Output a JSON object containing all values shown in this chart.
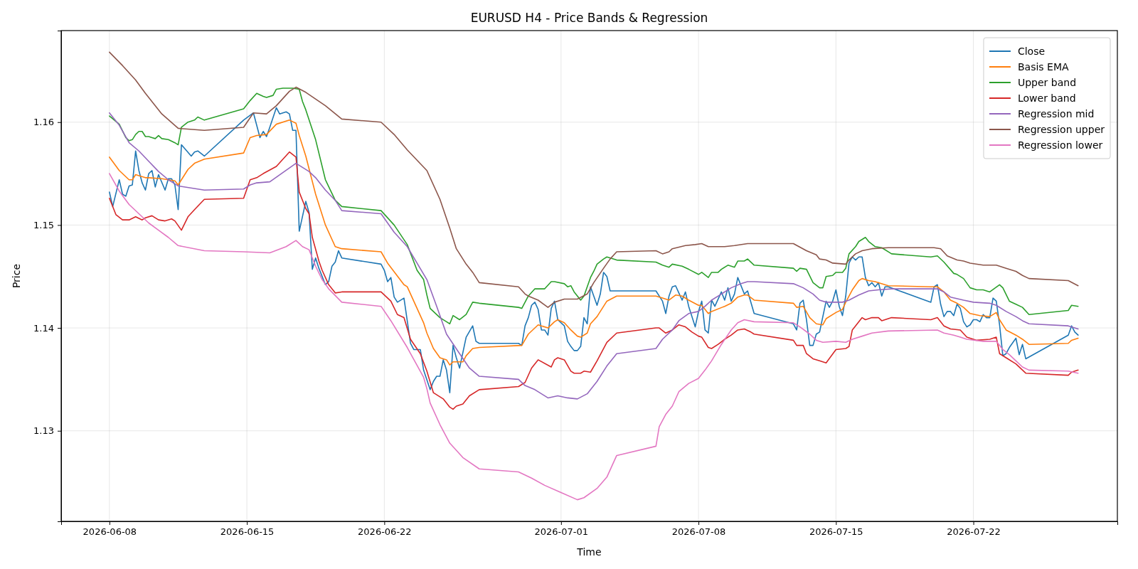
{
  "chart_data": {
    "type": "line",
    "title": "EURUSD H4 - Price Bands & Regression",
    "xlabel": "Time",
    "ylabel": "Price",
    "xlim": [
      "2026-06-05T13:00",
      "2026-07-29T08:00"
    ],
    "ylim": [
      1.1212,
      1.1689
    ],
    "xticks": [
      "2026-06-08",
      "2026-06-15",
      "2026-06-22",
      "2026-07-01",
      "2026-07-08",
      "2026-07-15",
      "2026-07-22"
    ],
    "yticks": [
      1.13,
      1.14,
      1.15,
      1.16
    ],
    "grid": true,
    "legend": "top right",
    "line_style": "solid",
    "marker": "none",
    "series": [
      {
        "name": "Close",
        "color": "#1f77b4",
        "x": [
          "2026-06-08T00:00",
          "2026-06-08T04:00",
          "2026-06-08T12:00",
          "2026-06-08T16:00",
          "2026-06-08T20:00",
          "2026-06-09T00:00",
          "2026-06-09T04:00",
          "2026-06-09T08:00",
          "2026-06-09T12:00",
          "2026-06-09T16:00",
          "2026-06-09T20:00",
          "2026-06-10T00:00",
          "2026-06-10T04:00",
          "2026-06-10T08:00",
          "2026-06-10T12:00",
          "2026-06-10T20:00",
          "2026-06-11T00:00",
          "2026-06-11T04:00",
          "2026-06-11T08:00",
          "2026-06-11T12:00",
          "2026-06-11T16:00",
          "2026-06-12T04:00",
          "2026-06-12T08:00",
          "2026-06-12T12:00",
          "2026-06-12T20:00",
          "2026-06-14T20:00",
          "2026-06-15T08:00",
          "2026-06-15T16:00",
          "2026-06-15T20:00",
          "2026-06-16T00:00",
          "2026-06-16T04:00",
          "2026-06-16T12:00",
          "2026-06-16T16:00",
          "2026-06-17T00:00",
          "2026-06-17T04:00",
          "2026-06-17T08:00",
          "2026-06-17T12:00",
          "2026-06-17T16:00",
          "2026-06-18T00:00",
          "2026-06-18T04:00",
          "2026-06-18T08:00",
          "2026-06-18T12:00",
          "2026-06-18T16:00",
          "2026-06-19T00:00",
          "2026-06-19T04:00",
          "2026-06-19T08:00",
          "2026-06-19T12:00",
          "2026-06-19T16:00",
          "2026-06-19T20:00",
          "2026-06-21T20:00",
          "2026-06-22T00:00",
          "2026-06-22T04:00",
          "2026-06-22T08:00",
          "2026-06-22T12:00",
          "2026-06-22T16:00",
          "2026-06-23T00:00",
          "2026-06-23T08:00",
          "2026-06-23T12:00",
          "2026-06-23T20:00",
          "2026-06-24T00:00",
          "2026-06-24T08:00",
          "2026-06-24T12:00",
          "2026-06-24T16:00",
          "2026-06-24T20:00",
          "2026-06-25T00:00",
          "2026-06-25T04:00",
          "2026-06-25T08:00",
          "2026-06-25T12:00",
          "2026-06-25T16:00",
          "2026-06-25T20:00",
          "2026-06-26T04:00",
          "2026-06-26T12:00",
          "2026-06-26T16:00",
          "2026-06-26T20:00",
          "2026-06-28T20:00",
          "2026-06-29T00:00",
          "2026-06-29T04:00",
          "2026-06-29T08:00",
          "2026-06-29T12:00",
          "2026-06-29T16:00",
          "2026-06-29T20:00",
          "2026-06-30T00:00",
          "2026-06-30T04:00",
          "2026-06-30T08:00",
          "2026-06-30T12:00",
          "2026-06-30T16:00",
          "2026-06-30T20:00",
          "2026-07-01T04:00",
          "2026-07-01T08:00",
          "2026-07-01T12:00",
          "2026-07-01T16:00",
          "2026-07-01T20:00",
          "2026-07-02T00:00",
          "2026-07-02T04:00",
          "2026-07-02T08:00",
          "2026-07-02T12:00",
          "2026-07-02T20:00",
          "2026-07-03T00:00",
          "2026-07-03T04:00",
          "2026-07-03T08:00",
          "2026-07-03T12:00",
          "2026-07-03T16:00",
          "2026-07-05T20:00",
          "2026-07-06T04:00",
          "2026-07-06T08:00",
          "2026-07-06T12:00",
          "2026-07-06T16:00",
          "2026-07-06T20:00",
          "2026-07-07T00:00",
          "2026-07-07T04:00",
          "2026-07-07T08:00",
          "2026-07-07T12:00",
          "2026-07-07T20:00",
          "2026-07-08T00:00",
          "2026-07-08T04:00",
          "2026-07-08T08:00",
          "2026-07-08T12:00",
          "2026-07-08T16:00",
          "2026-07-08T20:00",
          "2026-07-09T04:00",
          "2026-07-09T08:00",
          "2026-07-09T12:00",
          "2026-07-09T16:00",
          "2026-07-09T20:00",
          "2026-07-10T00:00",
          "2026-07-10T08:00",
          "2026-07-10T12:00",
          "2026-07-10T20:00",
          "2026-07-12T20:00",
          "2026-07-13T00:00",
          "2026-07-13T04:00",
          "2026-07-13T08:00",
          "2026-07-13T12:00",
          "2026-07-13T16:00",
          "2026-07-13T20:00",
          "2026-07-14T00:00",
          "2026-07-14T04:00",
          "2026-07-14T12:00",
          "2026-07-14T16:00",
          "2026-07-14T20:00",
          "2026-07-15T00:00",
          "2026-07-15T04:00",
          "2026-07-15T08:00",
          "2026-07-15T12:00",
          "2026-07-15T16:00",
          "2026-07-15T20:00",
          "2026-07-16T00:00",
          "2026-07-16T04:00",
          "2026-07-16T08:00",
          "2026-07-16T12:00",
          "2026-07-16T16:00",
          "2026-07-16T20:00",
          "2026-07-17T00:00",
          "2026-07-17T04:00",
          "2026-07-17T08:00",
          "2026-07-17T12:00",
          "2026-07-17T16:00",
          "2026-07-19T20:00",
          "2026-07-20T00:00",
          "2026-07-20T04:00",
          "2026-07-20T08:00",
          "2026-07-20T12:00",
          "2026-07-20T16:00",
          "2026-07-20T20:00",
          "2026-07-21T00:00",
          "2026-07-21T04:00",
          "2026-07-21T08:00",
          "2026-07-21T12:00",
          "2026-07-21T16:00",
          "2026-07-21T20:00",
          "2026-07-22T00:00",
          "2026-07-22T04:00",
          "2026-07-22T08:00",
          "2026-07-22T12:00",
          "2026-07-22T16:00",
          "2026-07-22T20:00",
          "2026-07-23T00:00",
          "2026-07-23T04:00",
          "2026-07-23T08:00",
          "2026-07-23T12:00",
          "2026-07-23T16:00",
          "2026-07-23T20:00",
          "2026-07-24T04:00",
          "2026-07-24T08:00",
          "2026-07-24T12:00",
          "2026-07-24T16:00",
          "2026-07-26T20:00",
          "2026-07-27T00:00",
          "2026-07-27T04:00",
          "2026-07-27T08:00"
        ],
        "values": [
          1.1532,
          1.1518,
          1.1544,
          1.153,
          1.1528,
          1.1538,
          1.1539,
          1.1572,
          1.1553,
          1.1541,
          1.1534,
          1.155,
          1.1553,
          1.1537,
          1.1549,
          1.1534,
          1.1545,
          1.1545,
          1.1539,
          1.1515,
          1.1578,
          1.1567,
          1.1571,
          1.1572,
          1.1567,
          1.1602,
          1.1609,
          1.1585,
          1.1591,
          1.1586,
          1.1595,
          1.1614,
          1.1608,
          1.161,
          1.1608,
          1.1592,
          1.1592,
          1.1494,
          1.1523,
          1.1512,
          1.1457,
          1.1468,
          1.1458,
          1.1442,
          1.1445,
          1.146,
          1.1464,
          1.1475,
          1.1468,
          1.1462,
          1.1456,
          1.1445,
          1.1449,
          1.143,
          1.1425,
          1.1429,
          1.1385,
          1.1379,
          1.1379,
          1.1359,
          1.134,
          1.1348,
          1.1353,
          1.1353,
          1.1369,
          1.1359,
          1.1337,
          1.1383,
          1.1371,
          1.1361,
          1.1391,
          1.1402,
          1.1387,
          1.1385,
          1.1385,
          1.1383,
          1.1402,
          1.141,
          1.1422,
          1.1425,
          1.1418,
          1.1398,
          1.1398,
          1.1393,
          1.1419,
          1.1426,
          1.1408,
          1.1402,
          1.1387,
          1.1382,
          1.1378,
          1.1378,
          1.1382,
          1.141,
          1.1404,
          1.144,
          1.1422,
          1.1433,
          1.1454,
          1.145,
          1.1436,
          1.1436,
          1.1436,
          1.1426,
          1.1414,
          1.1431,
          1.144,
          1.1441,
          1.1434,
          1.1427,
          1.1435,
          1.1421,
          1.1401,
          1.1416,
          1.1426,
          1.1398,
          1.1395,
          1.1427,
          1.1421,
          1.1435,
          1.1427,
          1.1439,
          1.1426,
          1.1433,
          1.1449,
          1.1433,
          1.1436,
          1.1414,
          1.1404,
          1.1398,
          1.1424,
          1.1427,
          1.1408,
          1.1383,
          1.1383,
          1.1394,
          1.1396,
          1.1426,
          1.142,
          1.1426,
          1.1437,
          1.1421,
          1.1412,
          1.1431,
          1.1463,
          1.1469,
          1.1466,
          1.1469,
          1.1469,
          1.1449,
          1.1441,
          1.1444,
          1.144,
          1.1444,
          1.1431,
          1.144,
          1.144,
          1.1425,
          1.144,
          1.1442,
          1.1423,
          1.1411,
          1.1416,
          1.1416,
          1.1412,
          1.1423,
          1.1419,
          1.1406,
          1.1401,
          1.1403,
          1.1408,
          1.1408,
          1.1406,
          1.1413,
          1.141,
          1.141,
          1.1429,
          1.1426,
          1.1403,
          1.1373,
          1.1375,
          1.1381,
          1.139,
          1.1374,
          1.1384,
          1.137,
          1.1393,
          1.1402,
          1.1396,
          1.1393
        ]
      },
      {
        "name": "Basis EMA",
        "color": "#ff7f0e",
        "x": [
          "2026-06-08T00:00",
          "2026-06-08T12:00",
          "2026-06-09T00:00",
          "2026-06-09T04:00",
          "2026-06-09T08:00",
          "2026-06-09T12:00",
          "2026-06-09T20:00",
          "2026-06-10T00:00",
          "2026-06-10T16:00",
          "2026-06-11T00:00",
          "2026-06-11T08:00",
          "2026-06-11T12:00",
          "2026-06-11T16:00",
          "2026-06-12T00:00",
          "2026-06-12T08:00",
          "2026-06-12T20:00",
          "2026-06-14T20:00",
          "2026-06-15T04:00",
          "2026-06-15T12:00",
          "2026-06-16T00:00",
          "2026-06-16T12:00",
          "2026-06-17T04:00",
          "2026-06-17T12:00",
          "2026-06-17T16:00",
          "2026-06-18T00:00",
          "2026-06-18T12:00",
          "2026-06-19T00:00",
          "2026-06-19T12:00",
          "2026-06-19T20:00",
          "2026-06-21T20:00",
          "2026-06-22T04:00",
          "2026-06-23T00:00",
          "2026-06-23T04:00",
          "2026-06-24T00:00",
          "2026-06-24T04:00",
          "2026-06-24T12:00",
          "2026-06-24T20:00",
          "2026-06-25T04:00",
          "2026-06-25T08:00",
          "2026-06-25T12:00",
          "2026-06-25T20:00",
          "2026-06-26T00:00",
          "2026-06-26T04:00",
          "2026-06-26T12:00",
          "2026-06-26T20:00",
          "2026-06-29T00:00",
          "2026-06-29T08:00",
          "2026-06-29T20:00",
          "2026-06-30T00:00",
          "2026-06-30T08:00",
          "2026-06-30T16:00",
          "2026-06-30T20:00",
          "2026-07-01T04:00",
          "2026-07-01T12:00",
          "2026-07-01T20:00",
          "2026-07-02T00:00",
          "2026-07-02T08:00",
          "2026-07-02T12:00",
          "2026-07-02T20:00",
          "2026-07-03T08:00",
          "2026-07-03T20:00",
          "2026-07-05T20:00",
          "2026-07-06T04:00",
          "2026-07-06T12:00",
          "2026-07-06T20:00",
          "2026-07-07T04:00",
          "2026-07-07T12:00",
          "2026-07-08T00:00",
          "2026-07-08T04:00",
          "2026-07-08T12:00",
          "2026-07-08T16:00",
          "2026-07-09T08:00",
          "2026-07-09T16:00",
          "2026-07-10T00:00",
          "2026-07-10T08:00",
          "2026-07-10T12:00",
          "2026-07-10T20:00",
          "2026-07-12T20:00",
          "2026-07-13T00:00",
          "2026-07-13T08:00",
          "2026-07-13T16:00",
          "2026-07-14T00:00",
          "2026-07-14T08:00",
          "2026-07-14T12:00",
          "2026-07-15T00:00",
          "2026-07-15T08:00",
          "2026-07-15T12:00",
          "2026-07-15T20:00",
          "2026-07-16T04:00",
          "2026-07-16T08:00",
          "2026-07-16T16:00",
          "2026-07-17T00:00",
          "2026-07-17T04:00",
          "2026-07-17T16:00",
          "2026-07-19T20:00",
          "2026-07-20T04:00",
          "2026-07-20T12:00",
          "2026-07-20T20:00",
          "2026-07-21T04:00",
          "2026-07-21T12:00",
          "2026-07-21T20:00",
          "2026-07-22T08:00",
          "2026-07-22T20:00",
          "2026-07-23T04:00",
          "2026-07-23T08:00",
          "2026-07-23T16:00",
          "2026-07-24T04:00",
          "2026-07-24T12:00",
          "2026-07-24T20:00",
          "2026-07-26T20:00",
          "2026-07-27T00:00",
          "2026-07-27T08:00"
        ],
        "values": [
          1.1566,
          1.1553,
          1.1544,
          1.1544,
          1.1549,
          1.1548,
          1.1546,
          1.1546,
          1.1545,
          1.1544,
          1.1543,
          1.1539,
          1.1544,
          1.1554,
          1.156,
          1.1564,
          1.157,
          1.1585,
          1.1587,
          1.1588,
          1.1598,
          1.1602,
          1.1599,
          1.1587,
          1.1567,
          1.153,
          1.15,
          1.1479,
          1.1477,
          1.1474,
          1.1463,
          1.1442,
          1.144,
          1.1405,
          1.1395,
          1.138,
          1.1371,
          1.1369,
          1.1364,
          1.1367,
          1.1367,
          1.1367,
          1.1373,
          1.138,
          1.1381,
          1.1383,
          1.1394,
          1.1403,
          1.1402,
          1.14,
          1.1406,
          1.1408,
          1.1405,
          1.1398,
          1.1392,
          1.1391,
          1.1395,
          1.1404,
          1.1411,
          1.1426,
          1.1431,
          1.1431,
          1.1429,
          1.1427,
          1.1432,
          1.1431,
          1.1427,
          1.1422,
          1.1422,
          1.1414,
          1.1416,
          1.1421,
          1.1424,
          1.143,
          1.1432,
          1.1432,
          1.1427,
          1.1424,
          1.142,
          1.1421,
          1.141,
          1.1404,
          1.1403,
          1.1409,
          1.1415,
          1.1418,
          1.1425,
          1.1437,
          1.1446,
          1.1448,
          1.1446,
          1.1445,
          1.1444,
          1.1441,
          1.144,
          1.144,
          1.1435,
          1.1427,
          1.1424,
          1.142,
          1.1414,
          1.1412,
          1.1411,
          1.1415,
          1.1408,
          1.1398,
          1.1393,
          1.1389,
          1.1384,
          1.1385,
          1.1388,
          1.139
        ]
      },
      {
        "name": "Upper band",
        "color": "#2ca02c",
        "x": [
          "2026-06-08T00:00",
          "2026-06-08T12:00",
          "2026-06-08T20:00",
          "2026-06-09T00:00",
          "2026-06-09T04:00",
          "2026-06-09T08:00",
          "2026-06-09T12:00",
          "2026-06-09T16:00",
          "2026-06-09T20:00",
          "2026-06-10T00:00",
          "2026-06-10T04:00",
          "2026-06-10T08:00",
          "2026-06-10T12:00",
          "2026-06-10T16:00",
          "2026-06-11T00:00",
          "2026-06-11T08:00",
          "2026-06-11T12:00",
          "2026-06-11T16:00",
          "2026-06-12T00:00",
          "2026-06-12T08:00",
          "2026-06-12T12:00",
          "2026-06-12T20:00",
          "2026-06-14T20:00",
          "2026-06-15T04:00",
          "2026-06-15T12:00",
          "2026-06-15T20:00",
          "2026-06-16T00:00",
          "2026-06-16T08:00",
          "2026-06-16T12:00",
          "2026-06-16T20:00",
          "2026-06-17T08:00",
          "2026-06-17T16:00",
          "2026-06-17T20:00",
          "2026-06-18T00:00",
          "2026-06-18T12:00",
          "2026-06-19T00:00",
          "2026-06-19T12:00",
          "2026-06-19T20:00",
          "2026-06-21T20:00",
          "2026-06-22T12:00",
          "2026-06-23T04:00",
          "2026-06-23T16:00",
          "2026-06-24T00:00",
          "2026-06-24T04:00",
          "2026-06-24T08:00",
          "2026-06-24T20:00",
          "2026-06-25T04:00",
          "2026-06-25T08:00",
          "2026-06-25T12:00",
          "2026-06-25T20:00",
          "2026-06-26T04:00",
          "2026-06-26T12:00",
          "2026-06-26T20:00",
          "2026-06-28T20:00",
          "2026-06-29T00:00",
          "2026-06-29T08:00",
          "2026-06-29T16:00",
          "2026-06-30T04:00",
          "2026-06-30T12:00",
          "2026-06-30T16:00",
          "2026-07-01T04:00",
          "2026-07-01T08:00",
          "2026-07-01T12:00",
          "2026-07-01T16:00",
          "2026-07-02T00:00",
          "2026-07-02T04:00",
          "2026-07-02T12:00",
          "2026-07-02T16:00",
          "2026-07-02T20:00",
          "2026-07-03T04:00",
          "2026-07-03T08:00",
          "2026-07-03T20:00",
          "2026-07-05T20:00",
          "2026-07-06T04:00",
          "2026-07-06T12:00",
          "2026-07-06T16:00",
          "2026-07-07T04:00",
          "2026-07-07T12:00",
          "2026-07-08T00:00",
          "2026-07-08T04:00",
          "2026-07-08T12:00",
          "2026-07-08T16:00",
          "2026-07-09T00:00",
          "2026-07-09T04:00",
          "2026-07-09T12:00",
          "2026-07-09T20:00",
          "2026-07-10T00:00",
          "2026-07-10T08:00",
          "2026-07-10T12:00",
          "2026-07-10T20:00",
          "2026-07-12T20:00",
          "2026-07-13T00:00",
          "2026-07-13T04:00",
          "2026-07-13T12:00",
          "2026-07-13T20:00",
          "2026-07-14T04:00",
          "2026-07-14T08:00",
          "2026-07-14T12:00",
          "2026-07-14T20:00",
          "2026-07-15T00:00",
          "2026-07-15T08:00",
          "2026-07-15T12:00",
          "2026-07-15T16:00",
          "2026-07-16T00:00",
          "2026-07-16T04:00",
          "2026-07-16T12:00",
          "2026-07-16T16:00",
          "2026-07-17T00:00",
          "2026-07-17T08:00",
          "2026-07-17T20:00",
          "2026-07-19T20:00",
          "2026-07-20T04:00",
          "2026-07-20T12:00",
          "2026-07-21T00:00",
          "2026-07-21T04:00",
          "2026-07-21T12:00",
          "2026-07-21T20:00",
          "2026-07-22T04:00",
          "2026-07-22T12:00",
          "2026-07-22T20:00",
          "2026-07-23T08:00",
          "2026-07-23T12:00",
          "2026-07-23T20:00",
          "2026-07-24T04:00",
          "2026-07-24T12:00",
          "2026-07-24T20:00",
          "2026-07-26T20:00",
          "2026-07-27T00:00",
          "2026-07-27T08:00"
        ],
        "values": [
          1.1606,
          1.1598,
          1.1585,
          1.1582,
          1.1583,
          1.1588,
          1.1591,
          1.1591,
          1.1586,
          1.1586,
          1.1585,
          1.1584,
          1.1587,
          1.1584,
          1.1583,
          1.158,
          1.1578,
          1.1595,
          1.16,
          1.1602,
          1.1605,
          1.1602,
          1.1613,
          1.1621,
          1.1628,
          1.1625,
          1.1624,
          1.1626,
          1.1632,
          1.1633,
          1.1633,
          1.1632,
          1.162,
          1.1612,
          1.1583,
          1.1544,
          1.1524,
          1.1518,
          1.1514,
          1.15,
          1.1481,
          1.1456,
          1.1447,
          1.1432,
          1.1419,
          1.141,
          1.1406,
          1.1404,
          1.1412,
          1.1408,
          1.1413,
          1.1425,
          1.1424,
          1.142,
          1.1419,
          1.1431,
          1.1438,
          1.1438,
          1.1445,
          1.1445,
          1.1443,
          1.144,
          1.1441,
          1.1435,
          1.1427,
          1.1431,
          1.1449,
          1.1455,
          1.1462,
          1.1467,
          1.1469,
          1.1466,
          1.1464,
          1.1461,
          1.1459,
          1.1462,
          1.146,
          1.1457,
          1.1452,
          1.1454,
          1.1449,
          1.1454,
          1.1454,
          1.1457,
          1.1461,
          1.1459,
          1.1465,
          1.1465,
          1.1467,
          1.1461,
          1.1458,
          1.1455,
          1.1458,
          1.1457,
          1.1444,
          1.1439,
          1.1439,
          1.145,
          1.1451,
          1.1454,
          1.1454,
          1.1458,
          1.1472,
          1.1479,
          1.1484,
          1.1488,
          1.1484,
          1.1479,
          1.1478,
          1.1472,
          1.1469,
          1.147,
          1.1464,
          1.1453,
          1.1452,
          1.1448,
          1.1439,
          1.1437,
          1.1437,
          1.1435,
          1.1442,
          1.1439,
          1.1426,
          1.1423,
          1.142,
          1.1413,
          1.1417,
          1.1422,
          1.1421
        ]
      },
      {
        "name": "Lower band",
        "color": "#d62728",
        "x": [
          "2026-06-08T00:00",
          "2026-06-08T08:00",
          "2026-06-08T16:00",
          "2026-06-09T00:00",
          "2026-06-09T08:00",
          "2026-06-09T16:00",
          "2026-06-09T20:00",
          "2026-06-10T04:00",
          "2026-06-10T12:00",
          "2026-06-10T20:00",
          "2026-06-11T04:00",
          "2026-06-11T08:00",
          "2026-06-11T16:00",
          "2026-06-12T00:00",
          "2026-06-12T08:00",
          "2026-06-12T20:00",
          "2026-06-14T20:00",
          "2026-06-15T04:00",
          "2026-06-15T12:00",
          "2026-06-15T20:00",
          "2026-06-16T12:00",
          "2026-06-17T04:00",
          "2026-06-17T12:00",
          "2026-06-17T16:00",
          "2026-06-18T00:00",
          "2026-06-18T04:00",
          "2026-06-18T08:00",
          "2026-06-18T16:00",
          "2026-06-18T20:00",
          "2026-06-19T04:00",
          "2026-06-19T12:00",
          "2026-06-19T20:00",
          "2026-06-21T20:00",
          "2026-06-22T08:00",
          "2026-06-22T16:00",
          "2026-06-23T00:00",
          "2026-06-23T08:00",
          "2026-06-23T20:00",
          "2026-06-24T04:00",
          "2026-06-24T12:00",
          "2026-06-25T00:00",
          "2026-06-25T08:00",
          "2026-06-25T12:00",
          "2026-06-25T16:00",
          "2026-06-26T00:00",
          "2026-06-26T08:00",
          "2026-06-26T20:00",
          "2026-06-28T20:00",
          "2026-06-29T04:00",
          "2026-06-29T12:00",
          "2026-06-29T20:00",
          "2026-06-30T12:00",
          "2026-06-30T16:00",
          "2026-06-30T20:00",
          "2026-07-01T04:00",
          "2026-07-01T12:00",
          "2026-07-01T16:00",
          "2026-07-02T00:00",
          "2026-07-02T04:00",
          "2026-07-02T12:00",
          "2026-07-02T20:00",
          "2026-07-03T08:00",
          "2026-07-03T20:00",
          "2026-07-05T20:00",
          "2026-07-06T00:00",
          "2026-07-06T08:00",
          "2026-07-06T16:00",
          "2026-07-07T00:00",
          "2026-07-07T08:00",
          "2026-07-07T16:00",
          "2026-07-08T00:00",
          "2026-07-08T04:00",
          "2026-07-08T12:00",
          "2026-07-08T16:00",
          "2026-07-09T00:00",
          "2026-07-09T08:00",
          "2026-07-09T16:00",
          "2026-07-10T00:00",
          "2026-07-10T08:00",
          "2026-07-10T16:00",
          "2026-07-10T20:00",
          "2026-07-12T20:00",
          "2026-07-13T00:00",
          "2026-07-13T08:00",
          "2026-07-13T12:00",
          "2026-07-13T20:00",
          "2026-07-14T04:00",
          "2026-07-14T12:00",
          "2026-07-15T00:00",
          "2026-07-15T12:00",
          "2026-07-15T16:00",
          "2026-07-15T20:00",
          "2026-07-16T08:00",
          "2026-07-16T12:00",
          "2026-07-16T20:00",
          "2026-07-17T04:00",
          "2026-07-17T08:00",
          "2026-07-17T20:00",
          "2026-07-19T20:00",
          "2026-07-20T04:00",
          "2026-07-20T12:00",
          "2026-07-20T20:00",
          "2026-07-21T08:00",
          "2026-07-21T16:00",
          "2026-07-22T04:00",
          "2026-07-22T20:00",
          "2026-07-23T04:00",
          "2026-07-23T08:00",
          "2026-07-23T16:00",
          "2026-07-24T04:00",
          "2026-07-24T16:00",
          "2026-07-26T20:00",
          "2026-07-27T00:00",
          "2026-07-27T08:00"
        ],
        "values": [
          1.1526,
          1.151,
          1.1505,
          1.1505,
          1.1508,
          1.1505,
          1.1507,
          1.1509,
          1.1505,
          1.1504,
          1.1506,
          1.1504,
          1.1495,
          1.1508,
          1.1515,
          1.1525,
          1.1526,
          1.1544,
          1.1546,
          1.155,
          1.1557,
          1.1571,
          1.1566,
          1.1532,
          1.1516,
          1.1511,
          1.1488,
          1.1465,
          1.1456,
          1.1442,
          1.1434,
          1.1435,
          1.1435,
          1.1426,
          1.1413,
          1.141,
          1.1389,
          1.1375,
          1.1358,
          1.1337,
          1.1331,
          1.1323,
          1.1321,
          1.1324,
          1.1326,
          1.1334,
          1.134,
          1.1343,
          1.1347,
          1.1361,
          1.1369,
          1.1362,
          1.1369,
          1.1371,
          1.1369,
          1.1358,
          1.1356,
          1.1356,
          1.1358,
          1.1357,
          1.1368,
          1.1386,
          1.1395,
          1.14,
          1.14,
          1.1395,
          1.1398,
          1.1403,
          1.1401,
          1.1396,
          1.1392,
          1.1391,
          1.1381,
          1.138,
          1.1384,
          1.1389,
          1.1393,
          1.1398,
          1.1399,
          1.1396,
          1.1394,
          1.1388,
          1.1383,
          1.1383,
          1.1375,
          1.137,
          1.1368,
          1.1366,
          1.1379,
          1.138,
          1.1382,
          1.1398,
          1.141,
          1.1408,
          1.141,
          1.141,
          1.1407,
          1.141,
          1.1408,
          1.141,
          1.1402,
          1.1399,
          1.1398,
          1.1391,
          1.1388,
          1.1389,
          1.1391,
          1.1375,
          1.1371,
          1.1365,
          1.1356,
          1.1354,
          1.1357,
          1.1359
        ]
      },
      {
        "name": "Regression mid",
        "color": "#9467bd",
        "x": [
          "2026-06-08T00:00",
          "2026-06-08T12:00",
          "2026-06-09T00:00",
          "2026-06-09T12:00",
          "2026-06-10T00:00",
          "2026-06-10T12:00",
          "2026-06-11T00:00",
          "2026-06-11T12:00",
          "2026-06-12T20:00",
          "2026-06-14T20:00",
          "2026-06-15T04:00",
          "2026-06-15T12:00",
          "2026-06-16T04:00",
          "2026-06-16T20:00",
          "2026-06-17T12:00",
          "2026-06-18T04:00",
          "2026-06-18T12:00",
          "2026-06-19T00:00",
          "2026-06-19T12:00",
          "2026-06-19T20:00",
          "2026-06-21T20:00",
          "2026-06-22T12:00",
          "2026-06-23T04:00",
          "2026-06-24T04:00",
          "2026-06-24T16:00",
          "2026-06-25T04:00",
          "2026-06-25T20:00",
          "2026-06-26T08:00",
          "2026-06-26T20:00",
          "2026-06-28T20:00",
          "2026-06-29T04:00",
          "2026-06-29T16:00",
          "2026-06-30T08:00",
          "2026-06-30T20:00",
          "2026-07-01T08:00",
          "2026-07-01T20:00",
          "2026-07-02T08:00",
          "2026-07-02T20:00",
          "2026-07-03T08:00",
          "2026-07-03T20:00",
          "2026-07-05T20:00",
          "2026-07-06T04:00",
          "2026-07-06T16:00",
          "2026-07-07T00:00",
          "2026-07-07T12:00",
          "2026-07-08T00:00",
          "2026-07-08T08:00",
          "2026-07-08T16:00",
          "2026-07-09T04:00",
          "2026-07-09T16:00",
          "2026-07-10T04:00",
          "2026-07-10T12:00",
          "2026-07-10T20:00",
          "2026-07-12T20:00",
          "2026-07-13T08:00",
          "2026-07-13T20:00",
          "2026-07-14T04:00",
          "2026-07-14T12:00",
          "2026-07-15T08:00",
          "2026-07-15T16:00",
          "2026-07-16T04:00",
          "2026-07-16T16:00",
          "2026-07-17T04:00",
          "2026-07-17T20:00",
          "2026-07-20T04:00",
          "2026-07-20T12:00",
          "2026-07-20T20:00",
          "2026-07-21T12:00",
          "2026-07-22T00:00",
          "2026-07-22T20:00",
          "2026-07-23T04:00",
          "2026-07-23T16:00",
          "2026-07-24T04:00",
          "2026-07-24T12:00",
          "2026-07-24T20:00",
          "2026-07-26T20:00",
          "2026-07-27T08:00"
        ],
        "values": [
          1.1609,
          1.1597,
          1.158,
          1.1572,
          1.1562,
          1.1552,
          1.1544,
          1.1538,
          1.1534,
          1.1535,
          1.1539,
          1.1541,
          1.1542,
          1.1551,
          1.156,
          1.1552,
          1.1546,
          1.1534,
          1.1524,
          1.1514,
          1.1511,
          1.1493,
          1.1479,
          1.1447,
          1.1421,
          1.1394,
          1.1375,
          1.1361,
          1.1353,
          1.135,
          1.1344,
          1.134,
          1.1332,
          1.1334,
          1.1332,
          1.1331,
          1.1336,
          1.1348,
          1.1363,
          1.1375,
          1.138,
          1.1389,
          1.1398,
          1.1407,
          1.1414,
          1.1416,
          1.1421,
          1.1427,
          1.1433,
          1.1439,
          1.1443,
          1.1445,
          1.1445,
          1.1443,
          1.1439,
          1.1433,
          1.1427,
          1.1425,
          1.1425,
          1.1427,
          1.1432,
          1.1436,
          1.1437,
          1.1438,
          1.1438,
          1.1435,
          1.143,
          1.1427,
          1.1425,
          1.1424,
          1.1422,
          1.1416,
          1.1411,
          1.1407,
          1.1404,
          1.1402,
          1.1399
        ]
      },
      {
        "name": "Regression upper",
        "color": "#8c564b",
        "x": [
          "2026-06-08T00:00",
          "2026-06-08T16:00",
          "2026-06-09T08:00",
          "2026-06-09T20:00",
          "2026-06-10T16:00",
          "2026-06-11T12:00",
          "2026-06-12T20:00",
          "2026-06-14T20:00",
          "2026-06-15T08:00",
          "2026-06-16T00:00",
          "2026-06-16T12:00",
          "2026-06-17T04:00",
          "2026-06-17T12:00",
          "2026-06-18T00:00",
          "2026-06-19T00:00",
          "2026-06-19T20:00",
          "2026-06-21T20:00",
          "2026-06-22T12:00",
          "2026-06-23T04:00",
          "2026-06-24T04:00",
          "2026-06-24T20:00",
          "2026-06-25T08:00",
          "2026-06-25T16:00",
          "2026-06-26T04:00",
          "2026-06-26T12:00",
          "2026-06-26T20:00",
          "2026-06-28T20:00",
          "2026-06-29T04:00",
          "2026-06-29T08:00",
          "2026-06-29T20:00",
          "2026-06-30T08:00",
          "2026-06-30T16:00",
          "2026-07-01T04:00",
          "2026-07-01T20:00",
          "2026-07-02T08:00",
          "2026-07-02T16:00",
          "2026-07-03T04:00",
          "2026-07-03T12:00",
          "2026-07-03T20:00",
          "2026-07-05T20:00",
          "2026-07-06T04:00",
          "2026-07-06T12:00",
          "2026-07-06T16:00",
          "2026-07-07T08:00",
          "2026-07-07T20:00",
          "2026-07-08T04:00",
          "2026-07-08T12:00",
          "2026-07-09T08:00",
          "2026-07-09T20:00",
          "2026-07-10T12:00",
          "2026-07-10T20:00",
          "2026-07-12T20:00",
          "2026-07-13T12:00",
          "2026-07-14T00:00",
          "2026-07-14T04:00",
          "2026-07-14T12:00",
          "2026-07-14T20:00",
          "2026-07-15T12:00",
          "2026-07-15T16:00",
          "2026-07-16T00:00",
          "2026-07-16T08:00",
          "2026-07-16T20:00",
          "2026-07-17T16:00",
          "2026-07-20T00:00",
          "2026-07-20T08:00",
          "2026-07-20T16:00",
          "2026-07-21T04:00",
          "2026-07-21T12:00",
          "2026-07-21T20:00",
          "2026-07-22T12:00",
          "2026-07-23T04:00",
          "2026-07-23T16:00",
          "2026-07-24T04:00",
          "2026-07-24T12:00",
          "2026-07-24T20:00",
          "2026-07-26T20:00",
          "2026-07-27T08:00"
        ],
        "values": [
          1.1668,
          1.1655,
          1.1641,
          1.1628,
          1.1608,
          1.1594,
          1.1592,
          1.1595,
          1.1609,
          1.1608,
          1.1616,
          1.163,
          1.1634,
          1.1629,
          1.1616,
          1.1603,
          1.16,
          1.1588,
          1.1573,
          1.1553,
          1.1525,
          1.1497,
          1.1477,
          1.1462,
          1.1454,
          1.1444,
          1.144,
          1.1433,
          1.1431,
          1.1427,
          1.142,
          1.1425,
          1.1428,
          1.1428,
          1.1433,
          1.1444,
          1.1458,
          1.1467,
          1.1474,
          1.1475,
          1.1472,
          1.1474,
          1.1477,
          1.148,
          1.1481,
          1.1482,
          1.1479,
          1.1479,
          1.148,
          1.1482,
          1.1482,
          1.1482,
          1.1475,
          1.1471,
          1.1467,
          1.1466,
          1.1463,
          1.1462,
          1.1466,
          1.1472,
          1.1475,
          1.1477,
          1.1478,
          1.1478,
          1.1477,
          1.147,
          1.1466,
          1.1465,
          1.1463,
          1.1461,
          1.1461,
          1.1458,
          1.1455,
          1.1451,
          1.1448,
          1.1446,
          1.1441
        ]
      },
      {
        "name": "Regression lower",
        "color": "#e377c2",
        "x": [
          "2026-06-08T00:00",
          "2026-06-08T12:00",
          "2026-06-09T00:00",
          "2026-06-09T12:00",
          "2026-06-10T00:00",
          "2026-06-10T12:00",
          "2026-06-11T00:00",
          "2026-06-11T12:00",
          "2026-06-12T20:00",
          "2026-06-14T20:00",
          "2026-06-16T04:00",
          "2026-06-17T00:00",
          "2026-06-17T12:00",
          "2026-06-17T20:00",
          "2026-06-18T04:00",
          "2026-06-18T12:00",
          "2026-06-18T20:00",
          "2026-06-19T04:00",
          "2026-06-19T20:00",
          "2026-06-21T20:00",
          "2026-06-22T08:00",
          "2026-06-23T04:00",
          "2026-06-24T00:00",
          "2026-06-24T04:00",
          "2026-06-24T08:00",
          "2026-06-24T20:00",
          "2026-06-25T08:00",
          "2026-06-26T00:00",
          "2026-06-26T20:00",
          "2026-06-28T20:00",
          "2026-06-29T12:00",
          "2026-06-30T04:00",
          "2026-07-01T00:00",
          "2026-07-01T20:00",
          "2026-07-02T04:00",
          "2026-07-02T20:00",
          "2026-07-03T08:00",
          "2026-07-03T20:00",
          "2026-07-05T20:00",
          "2026-07-06T00:00",
          "2026-07-06T08:00",
          "2026-07-06T16:00",
          "2026-07-07T00:00",
          "2026-07-07T12:00",
          "2026-07-08T00:00",
          "2026-07-08T08:00",
          "2026-07-08T16:00",
          "2026-07-09T04:00",
          "2026-07-09T16:00",
          "2026-07-10T00:00",
          "2026-07-10T08:00",
          "2026-07-10T20:00",
          "2026-07-12T20:00",
          "2026-07-13T04:00",
          "2026-07-13T16:00",
          "2026-07-14T00:00",
          "2026-07-14T08:00",
          "2026-07-15T00:00",
          "2026-07-15T12:00",
          "2026-07-15T20:00",
          "2026-07-16T08:00",
          "2026-07-16T20:00",
          "2026-07-17T16:00",
          "2026-07-20T04:00",
          "2026-07-20T12:00",
          "2026-07-21T00:00",
          "2026-07-21T08:00",
          "2026-07-21T16:00",
          "2026-07-22T12:00",
          "2026-07-23T04:00",
          "2026-07-23T12:00",
          "2026-07-23T20:00",
          "2026-07-24T04:00",
          "2026-07-24T12:00",
          "2026-07-24T20:00",
          "2026-07-26T20:00",
          "2026-07-27T08:00"
        ],
        "values": [
          1.155,
          1.1533,
          1.152,
          1.1511,
          1.1502,
          1.1495,
          1.1488,
          1.148,
          1.1475,
          1.1474,
          1.1473,
          1.1479,
          1.1485,
          1.1479,
          1.1476,
          1.146,
          1.1447,
          1.1438,
          1.1425,
          1.1421,
          1.1407,
          1.1381,
          1.1352,
          1.1341,
          1.1327,
          1.1306,
          1.1288,
          1.1274,
          1.1263,
          1.126,
          1.1254,
          1.1247,
          1.124,
          1.1233,
          1.1235,
          1.1244,
          1.1255,
          1.1276,
          1.1285,
          1.1304,
          1.1316,
          1.1324,
          1.1338,
          1.1346,
          1.1351,
          1.1359,
          1.1368,
          1.1384,
          1.1398,
          1.1405,
          1.1408,
          1.1406,
          1.1405,
          1.1401,
          1.1394,
          1.1388,
          1.1386,
          1.1387,
          1.1386,
          1.1389,
          1.1392,
          1.1395,
          1.1397,
          1.1398,
          1.1395,
          1.1393,
          1.1391,
          1.1389,
          1.1387,
          1.1387,
          1.1379,
          1.1374,
          1.1368,
          1.1362,
          1.1359,
          1.1358,
          1.1356
        ]
      }
    ]
  }
}
